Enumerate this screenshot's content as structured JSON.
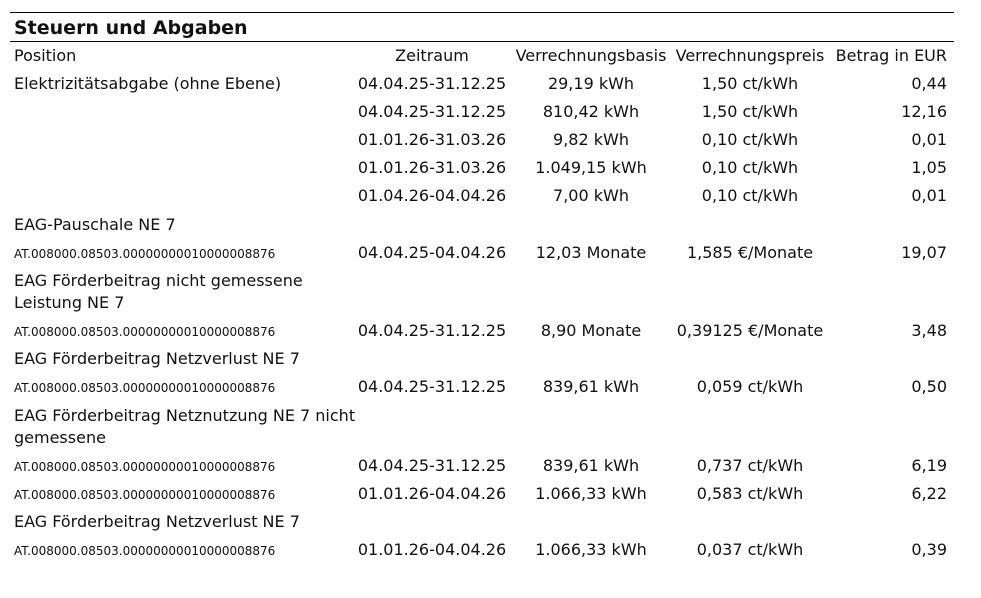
{
  "section": {
    "title": "Steuern und Abgaben"
  },
  "headers": {
    "position": "Position",
    "zeitraum": "Zeitraum",
    "basis": "Verrechnungsbasis",
    "preis": "Verrechnungspreis",
    "betrag": "Betrag in EUR"
  },
  "positions": [
    "Elektrizitätsabgabe (ohne Ebene)",
    "EAG-Pauschale NE 7",
    "EAG Förderbeitrag nicht gemessene",
    "Leistung NE 7",
    "EAG Förderbeitrag Netzverlust NE 7",
    "EAG Förderbeitrag Netznutzung NE 7 nicht",
    "gemessene",
    "EAG Förderbeitrag Netzverlust NE 7"
  ],
  "ids": [
    "AT.008000.08503.0000000001000000887​6",
    "AT.008000.08503.0000000001000000887​6",
    "AT.008000.08503.0000000001000000887​6",
    "AT.008000.08503.0000000001000000887​6",
    "AT.008000.08503.0000000001000000887​6",
    "AT.008000.08503.0000000001000000887​6"
  ],
  "rows": [
    {
      "zeitraum": "04.04.25-31.12.25",
      "basis": "29,19 kWh",
      "preis": "1,50 ct/kWh",
      "betrag": "0,44"
    },
    {
      "zeitraum": "04.04.25-31.12.25",
      "basis": "810,42 kWh",
      "preis": "1,50 ct/kWh",
      "betrag": "12,16"
    },
    {
      "zeitraum": "01.01.26-31.03.26",
      "basis": "9,82 kWh",
      "preis": "0,10 ct/kWh",
      "betrag": "0,01"
    },
    {
      "zeitraum": "01.01.26-31.03.26",
      "basis": "1.049,15 kWh",
      "preis": "0,10 ct/kWh",
      "betrag": "1,05"
    },
    {
      "zeitraum": "01.04.26-04.04.26",
      "basis": "7,00 kWh",
      "preis": "0,10 ct/kWh",
      "betrag": "0,01"
    },
    {
      "zeitraum": "04.04.25-04.04.26",
      "basis": "12,03 Monate",
      "preis": "1,585 €/Monate",
      "betrag": "19,07"
    },
    {
      "zeitraum": "04.04.25-31.12.25",
      "basis": "8,90 Monate",
      "preis": "0,39125 €/Monate",
      "betrag": "3,48"
    },
    {
      "zeitraum": "04.04.25-31.12.25",
      "basis": "839,61 kWh",
      "preis": "0,059 ct/kWh",
      "betrag": "0,50"
    },
    {
      "zeitraum": "04.04.25-31.12.25",
      "basis": "839,61 kWh",
      "preis": "0,737 ct/kWh",
      "betrag": "6,19"
    },
    {
      "zeitraum": "01.01.26-04.04.26",
      "basis": "1.066,33 kWh",
      "preis": "0,583 ct/kWh",
      "betrag": "6,22"
    },
    {
      "zeitraum": "01.01.26-04.04.26",
      "basis": "1.066,33 kWh",
      "preis": "0,037 ct/kWh",
      "betrag": "0,39"
    }
  ]
}
